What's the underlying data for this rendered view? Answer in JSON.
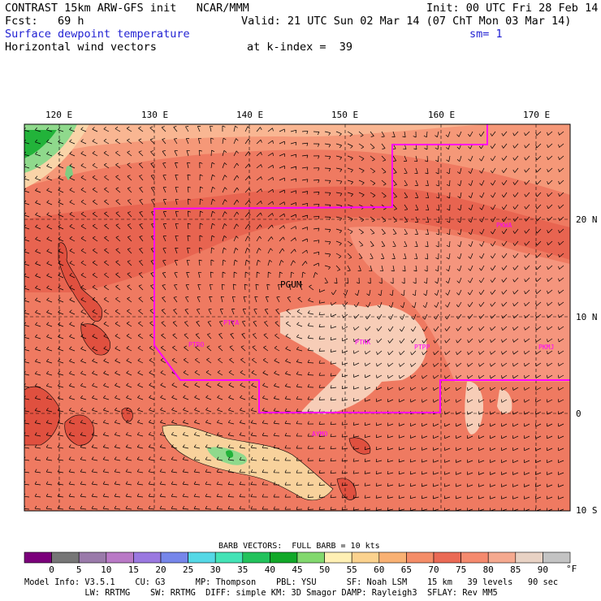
{
  "header": {
    "title_left": "CONTRAST 15km ARW-GFS init   NCAR/MMM",
    "init": "Init: 00 UTC Fri 28 Feb 14",
    "fcst": "Fcst:   69 h",
    "valid": "Valid: 21 UTC Sun 02 Mar 14 (07 ChT Mon 03 Mar 14)",
    "field": "Surface dewpoint temperature",
    "smooth": "sm= 1",
    "vectors": "Horizontal wind vectors",
    "kindex": "at k-index =  39"
  },
  "map": {
    "lon_labels": [
      "120 E",
      "130 E",
      "140 E",
      "150 E",
      "160 E",
      "170 E"
    ],
    "lat_labels": [
      "20 N",
      "10 N",
      "0",
      "10 S"
    ],
    "stations": [
      "PGUM",
      "PTYA",
      "PTRO",
      "PTKK",
      "PTPP",
      "PKMJ",
      "PKWA",
      "AYMO"
    ],
    "colors": {
      "boundary": "#ff00ff",
      "station": "#ff00ff",
      "grid": "#000000"
    }
  },
  "colorbar": {
    "title": "BARB VECTORS:  FULL BARB = 10 kts",
    "labels": [
      "0",
      "5",
      "10",
      "15",
      "20",
      "25",
      "30",
      "35",
      "40",
      "45",
      "50",
      "55",
      "60",
      "65",
      "70",
      "75",
      "80",
      "85",
      "90"
    ],
    "unit": "°F",
    "colors": [
      "#7b007b",
      "#767676",
      "#9a7aaa",
      "#b979c6",
      "#9a78e0",
      "#7686ea",
      "#55d8e6",
      "#44e3b6",
      "#22c25c",
      "#11a828",
      "#82d86e",
      "#fff0b4",
      "#fbd28e",
      "#f9b173",
      "#f48d68",
      "#ea6a55",
      "#f58a6e",
      "#f5a98f",
      "#e8d2c4",
      "#c3c3c3"
    ]
  },
  "footer": {
    "line1": "Model Info: V3.5.1    CU: G3      MP: Thompson    PBL: YSU      SF: Noah LSM    15 km   39 levels   90 sec",
    "line2": "            LW: RRTMG    SW: RRTMG  DIFF: simple KM: 3D Smagor DAMP: Rayleigh3  SFLAY: Rev MM5"
  }
}
